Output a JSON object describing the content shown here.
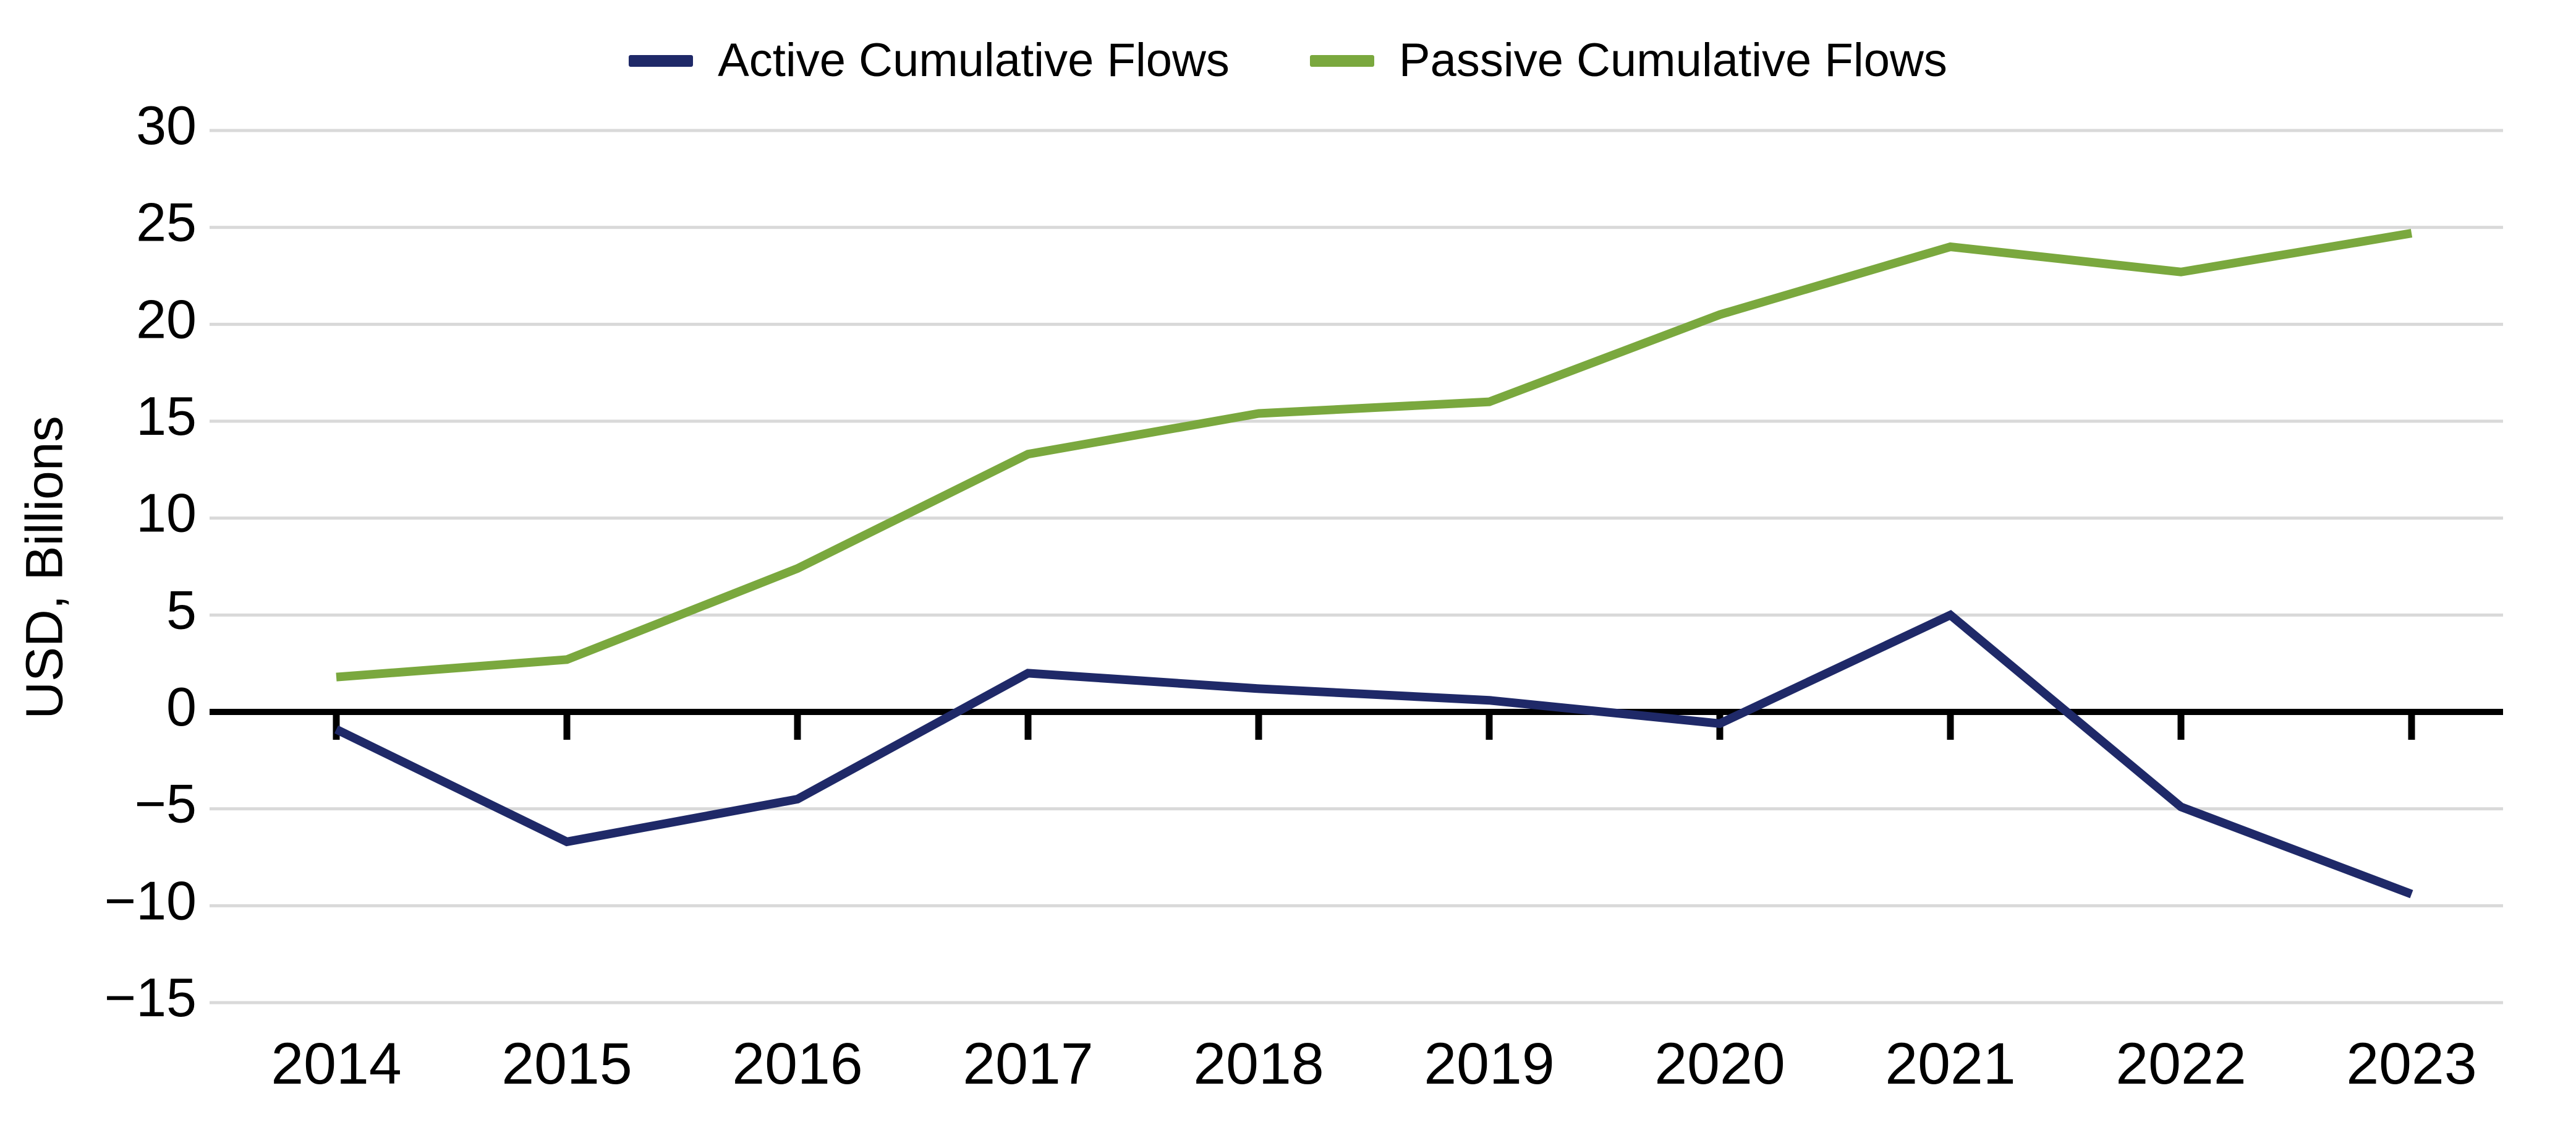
{
  "legend": {
    "items": [
      {
        "label": "Active Cumulative Flows",
        "color": "#1f2968"
      },
      {
        "label": "Passive Cumulative Flows",
        "color": "#7aa83e"
      }
    ]
  },
  "y_axis": {
    "title": "USD, Billions",
    "tick_labels": [
      "30",
      "25",
      "20",
      "15",
      "10",
      "5",
      "0",
      "−5",
      "−10",
      "−15"
    ],
    "tick_values": [
      30,
      25,
      20,
      15,
      10,
      5,
      0,
      -5,
      -10,
      -15
    ]
  },
  "x_axis": {
    "labels": [
      "2014",
      "2015",
      "2016",
      "2017",
      "2018",
      "2019",
      "2020",
      "2021",
      "2022",
      "2023"
    ]
  },
  "chart_data": {
    "type": "line",
    "x": [
      "2014",
      "2015",
      "2016",
      "2017",
      "2018",
      "2019",
      "2020",
      "2021",
      "2022",
      "2023"
    ],
    "series": [
      {
        "name": "Active Cumulative Flows",
        "color": "#1f2968",
        "values": [
          -0.9,
          -6.7,
          -4.5,
          2.0,
          1.2,
          0.6,
          -0.6,
          5.0,
          -4.9,
          -9.4
        ]
      },
      {
        "name": "Passive Cumulative Flows",
        "color": "#7aa83e",
        "values": [
          1.8,
          2.7,
          7.4,
          13.3,
          15.4,
          16.0,
          20.5,
          24.0,
          22.7,
          24.7
        ]
      }
    ],
    "title": "",
    "xlabel": "",
    "ylabel": "USD, Billions",
    "ylim": [
      -15,
      30
    ],
    "grid": "horizontal",
    "legend_position": "top-center",
    "zero_line": true
  },
  "colors": {
    "grid": "#d9d9d9",
    "axis": "#000000",
    "background": "#ffffff"
  }
}
